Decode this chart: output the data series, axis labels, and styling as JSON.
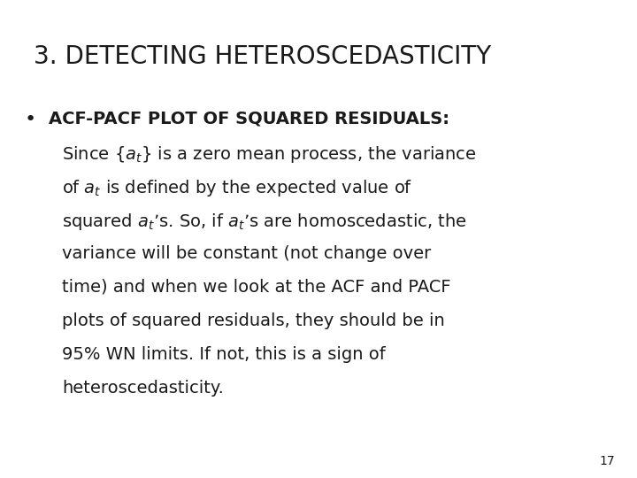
{
  "title": "3. DETECTING HETEROSCEDASTICITY",
  "title_fontsize": 20,
  "title_fontweight": "normal",
  "title_color": "#1a1a1a",
  "background_color": "#ffffff",
  "page_number": "17",
  "bullet_fontsize": 14,
  "text_fontsize": 14,
  "text_color": "#1a1a1a",
  "bullet_bold": "ACF-PACF PLOT OF SQUARED RESIDUALS:",
  "text_lines": [
    "Since {$a_t$} is a zero mean process, the variance",
    "of $a_t$ is defined by the expected value of",
    "squared $a_t$’s. So, if $a_t$’s are homoscedastic, the",
    "variance will be constant (not change over",
    "time) and when we look at the ACF and PACF",
    "plots of squared residuals, they should be in",
    "95% WN limits. If not, this is a sign of",
    "heteroscedasticity."
  ]
}
